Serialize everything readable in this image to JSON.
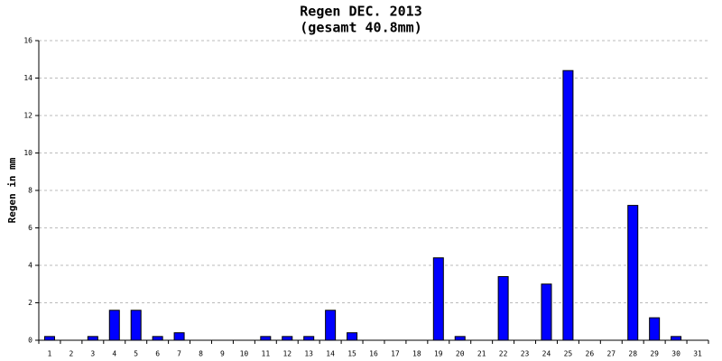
{
  "chart_data": {
    "type": "bar",
    "title": "Regen DEC. 2013",
    "subtitle": "(gesamt 40.8mm)",
    "y_label": "Regen in mm",
    "categories": [
      "1",
      "2",
      "3",
      "4",
      "5",
      "6",
      "7",
      "8",
      "9",
      "10",
      "11",
      "12",
      "13",
      "14",
      "15",
      "16",
      "17",
      "18",
      "19",
      "20",
      "21",
      "22",
      "23",
      "24",
      "25",
      "26",
      "27",
      "28",
      "29",
      "30",
      "31"
    ],
    "values": [
      0.2,
      0,
      0.2,
      1.6,
      1.6,
      0.2,
      0.4,
      0,
      0,
      0,
      0.2,
      0.2,
      0.2,
      1.6,
      0.4,
      0,
      0,
      0,
      4.4,
      0.2,
      0,
      3.4,
      0,
      3.0,
      14.4,
      0,
      0,
      7.2,
      1.2,
      0.2,
      0
    ],
    "color": "#0000ff",
    "ylim": [
      0,
      16
    ],
    "yticks": [
      0,
      2,
      4,
      6,
      8,
      10,
      12,
      14,
      16
    ],
    "grid": true
  }
}
